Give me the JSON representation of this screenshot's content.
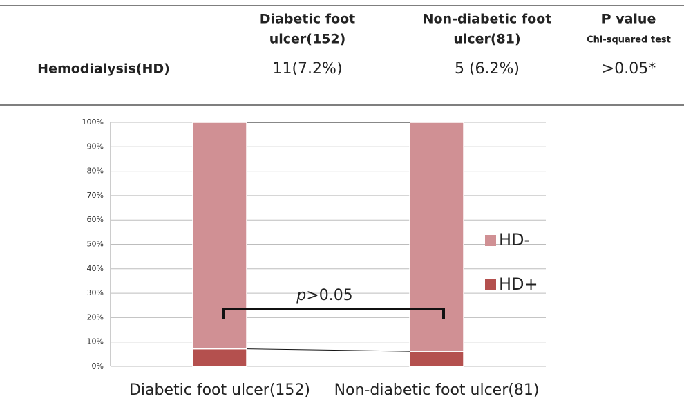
{
  "table": {
    "header": [
      {
        "lines": [
          "Diabetic foot",
          "ulcer(152)"
        ]
      },
      {
        "lines": [
          "Non-diabetic foot",
          "ulcer(81)"
        ]
      },
      {
        "lines": [
          "P value"
        ],
        "note": "Chi-squared test"
      }
    ],
    "rows": [
      [
        "Hemodialysis(HD)",
        "11(7.2%)",
        "5 (6.2%)",
        ">0.05*"
      ]
    ]
  },
  "chart_data": {
    "type": "stacked_bar",
    "categories": [
      "Diabetic foot ulcer(152)",
      "Non-diabetic foot ulcer(81)"
    ],
    "series": [
      {
        "name": "HD+",
        "color": "#b4504e",
        "values": [
          7.2,
          6.2
        ]
      },
      {
        "name": "HD-",
        "color": "#d09094",
        "values": [
          92.8,
          93.8
        ]
      }
    ],
    "ylim": [
      0,
      100
    ],
    "yticks": [
      {
        "value": 0,
        "label": "0%"
      },
      {
        "value": 10,
        "label": "10%"
      },
      {
        "value": 20,
        "label": "20%"
      },
      {
        "value": 30,
        "label": "30%"
      },
      {
        "value": 40,
        "label": "40%"
      },
      {
        "value": 50,
        "label": "50%"
      },
      {
        "value": 60,
        "label": "60%"
      },
      {
        "value": 70,
        "label": "70%"
      },
      {
        "value": 80,
        "label": "80%"
      },
      {
        "value": 90,
        "label": "90%"
      },
      {
        "value": 100,
        "label": "100%"
      }
    ],
    "grid": true,
    "legend": "right",
    "annotation": {
      "italic": "p",
      "text": ">0.05"
    }
  }
}
